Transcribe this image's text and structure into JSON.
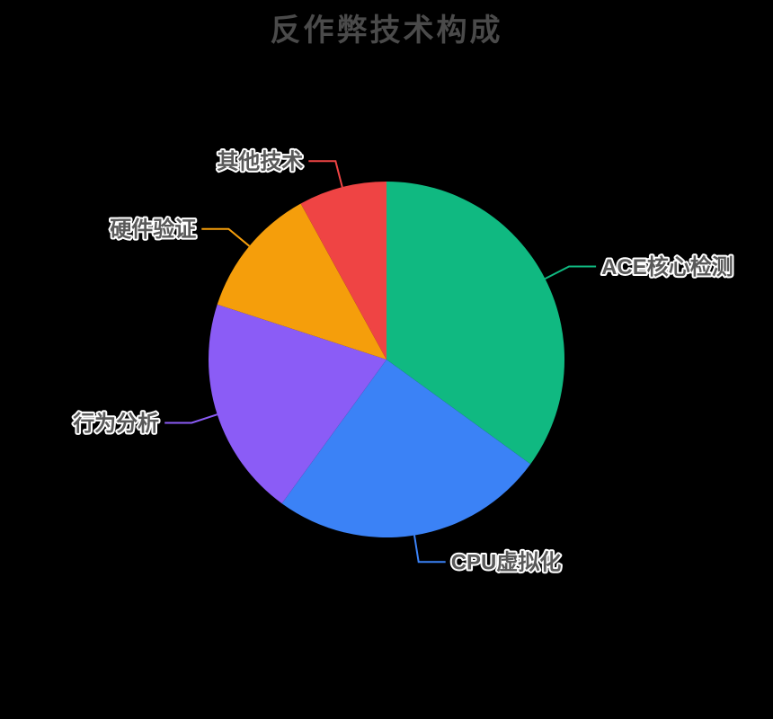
{
  "page": {
    "background_color": "#000000"
  },
  "chart_data": {
    "type": "pie",
    "title": "反作弊技术构成",
    "title_color": "#4a4a4a",
    "legend_position": "none",
    "direction": "clockwise",
    "start_angle_deg": 0,
    "center": [
      430,
      400
    ],
    "radius": 198,
    "label_line": {
      "length1": 30,
      "length2": 30,
      "width": 2,
      "text_gap": 6
    },
    "label_style": {
      "color": "#595959",
      "outline": "#ffffff"
    },
    "segments": [
      {
        "label": "ACE核心检测",
        "value": 35,
        "color": "#10b981"
      },
      {
        "label": "CPU虚拟化",
        "value": 25,
        "color": "#3b82f6"
      },
      {
        "label": "行为分析",
        "value": 20,
        "color": "#8b5cf6"
      },
      {
        "label": "硬件验证",
        "value": 12,
        "color": "#f59e0b"
      },
      {
        "label": "其他技术",
        "value": 8,
        "color": "#ef4444"
      }
    ]
  }
}
